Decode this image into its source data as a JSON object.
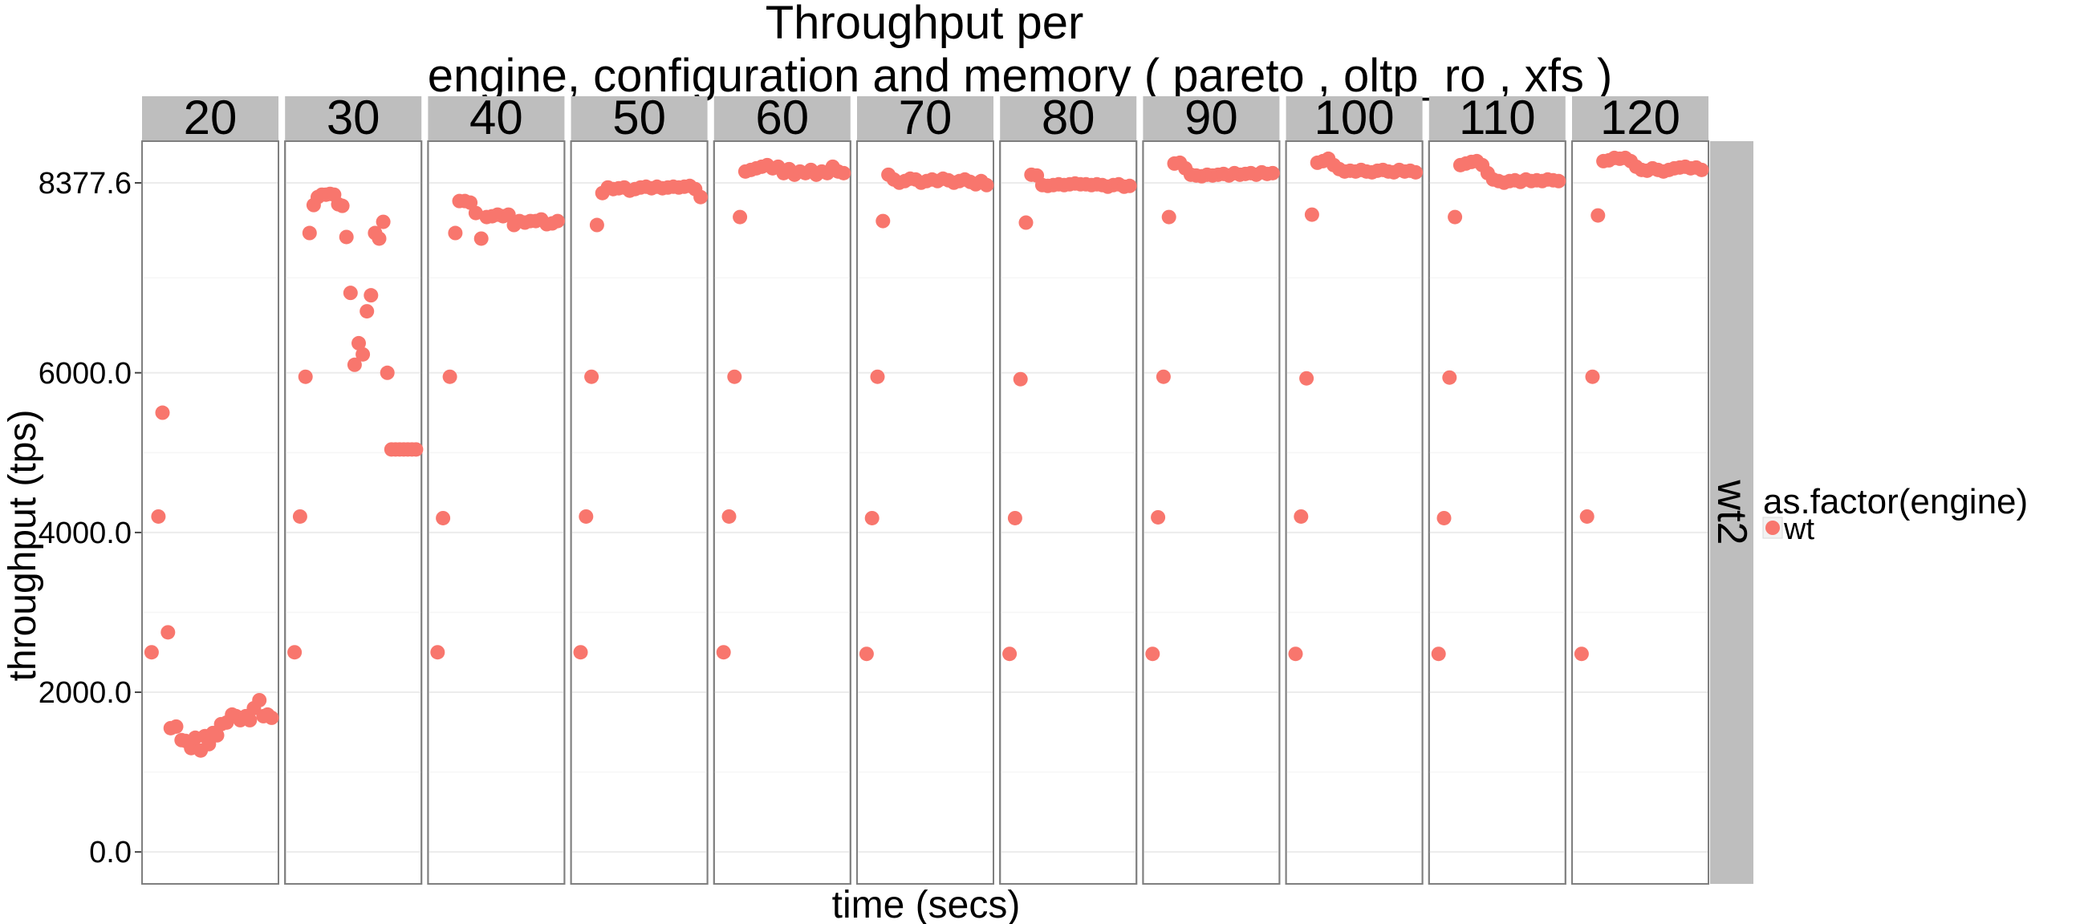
{
  "chart_data": {
    "type": "scatter",
    "title": "Throughput per\nengine, configuration and memory ( pareto , oltp_ro , xfs )",
    "xlabel": "time (secs)",
    "ylabel": "throughput (tps)",
    "ylim": [
      -400,
      8900
    ],
    "yticks": [
      0.0,
      2000.0,
      4000.0,
      6000.0,
      8377.6
    ],
    "ytick_labels": [
      "0.0",
      "2000.0",
      "4000.0",
      "6000.0",
      "8377.6"
    ],
    "xlim": [
      0,
      1
    ],
    "grid": true,
    "facet_columns": [
      "20",
      "30",
      "40",
      "50",
      "60",
      "70",
      "80",
      "90",
      "100",
      "110",
      "120"
    ],
    "facet_row": "wt2",
    "legend": {
      "title": "as.factor(engine)",
      "position": "right",
      "entries": [
        {
          "label": "wt",
          "color": "#f8766d"
        }
      ]
    },
    "series": [
      {
        "name": "wt",
        "facets": [
          {
            "facet": "20",
            "x": [
              0.07,
              0.12,
              0.15,
              0.19,
              0.21,
              0.25,
              0.29,
              0.32,
              0.36,
              0.39,
              0.43,
              0.46,
              0.49,
              0.52,
              0.55,
              0.58,
              0.62,
              0.66,
              0.69,
              0.72,
              0.76,
              0.79,
              0.82,
              0.86,
              0.89,
              0.92,
              0.95
            ],
            "y": [
              2500,
              4200,
              5500,
              2750,
              1550,
              1570,
              1400,
              1390,
              1300,
              1430,
              1270,
              1450,
              1350,
              1490,
              1460,
              1600,
              1620,
              1720,
              1700,
              1650,
              1700,
              1650,
              1800,
              1900,
              1700,
              1720,
              1680
            ]
          },
          {
            "facet": "30",
            "x": [
              0.07,
              0.11,
              0.15,
              0.18,
              0.21,
              0.24,
              0.27,
              0.3,
              0.33,
              0.36,
              0.39,
              0.42,
              0.45,
              0.48,
              0.51,
              0.54,
              0.57,
              0.6,
              0.63,
              0.66,
              0.69,
              0.72,
              0.75,
              0.78,
              0.81,
              0.84,
              0.87,
              0.9,
              0.93,
              0.96
            ],
            "y": [
              2500,
              4200,
              5950,
              7750,
              8100,
              8200,
              8230,
              8230,
              8240,
              8230,
              8110,
              8090,
              7700,
              7000,
              6100,
              6370,
              6230,
              6770,
              6970,
              7750,
              7680,
              7890,
              6000,
              5040,
              5040,
              5040,
              5040,
              5040,
              5040,
              5040
            ]
          },
          {
            "facet": "40",
            "x": [
              0.07,
              0.11,
              0.16,
              0.2,
              0.23,
              0.27,
              0.31,
              0.35,
              0.39,
              0.43,
              0.47,
              0.51,
              0.55,
              0.59,
              0.63,
              0.67,
              0.71,
              0.75,
              0.79,
              0.83,
              0.87,
              0.91,
              0.95
            ],
            "y": [
              2500,
              4180,
              5950,
              7750,
              8150,
              8150,
              8130,
              8000,
              7680,
              7950,
              7960,
              7980,
              7960,
              7980,
              7850,
              7900,
              7880,
              7900,
              7900,
              7920,
              7860,
              7870,
              7900
            ]
          },
          {
            "facet": "50",
            "x": [
              0.07,
              0.11,
              0.15,
              0.19,
              0.23,
              0.27,
              0.31,
              0.35,
              0.39,
              0.43,
              0.47,
              0.51,
              0.55,
              0.59,
              0.63,
              0.67,
              0.71,
              0.75,
              0.79,
              0.83,
              0.87,
              0.91,
              0.95
            ],
            "y": [
              2500,
              4200,
              5950,
              7850,
              8250,
              8320,
              8300,
              8310,
              8320,
              8280,
              8300,
              8320,
              8330,
              8310,
              8330,
              8310,
              8320,
              8330,
              8320,
              8330,
              8340,
              8300,
              8200
            ]
          },
          {
            "facet": "60",
            "x": [
              0.07,
              0.11,
              0.15,
              0.19,
              0.23,
              0.27,
              0.31,
              0.35,
              0.39,
              0.43,
              0.47,
              0.51,
              0.55,
              0.59,
              0.63,
              0.67,
              0.71,
              0.75,
              0.79,
              0.83,
              0.87,
              0.91,
              0.95
            ],
            "y": [
              2500,
              4200,
              5950,
              7950,
              8520,
              8540,
              8560,
              8580,
              8600,
              8560,
              8580,
              8500,
              8550,
              8480,
              8520,
              8500,
              8540,
              8480,
              8520,
              8500,
              8580,
              8520,
              8500
            ]
          },
          {
            "facet": "70",
            "x": [
              0.07,
              0.11,
              0.15,
              0.19,
              0.23,
              0.27,
              0.31,
              0.35,
              0.39,
              0.43,
              0.47,
              0.51,
              0.55,
              0.59,
              0.63,
              0.67,
              0.71,
              0.75,
              0.79,
              0.83,
              0.87,
              0.91,
              0.95
            ],
            "y": [
              2480,
              4180,
              5950,
              7900,
              8480,
              8420,
              8380,
              8400,
              8430,
              8420,
              8380,
              8400,
              8420,
              8400,
              8430,
              8410,
              8380,
              8400,
              8420,
              8390,
              8360,
              8400,
              8350
            ]
          },
          {
            "facet": "80",
            "x": [
              0.07,
              0.11,
              0.15,
              0.19,
              0.23,
              0.27,
              0.31,
              0.35,
              0.39,
              0.43,
              0.47,
              0.51,
              0.55,
              0.59,
              0.63,
              0.67,
              0.71,
              0.75,
              0.79,
              0.83,
              0.87,
              0.91,
              0.95
            ],
            "y": [
              2480,
              4180,
              5920,
              7880,
              8480,
              8470,
              8350,
              8340,
              8350,
              8360,
              8350,
              8360,
              8370,
              8360,
              8360,
              8350,
              8360,
              8350,
              8330,
              8350,
              8360,
              8330,
              8340
            ]
          },
          {
            "facet": "90",
            "x": [
              0.07,
              0.11,
              0.15,
              0.19,
              0.23,
              0.27,
              0.31,
              0.35,
              0.39,
              0.43,
              0.47,
              0.51,
              0.55,
              0.59,
              0.63,
              0.67,
              0.71,
              0.75,
              0.79,
              0.83,
              0.87,
              0.91,
              0.95
            ],
            "y": [
              2480,
              4190,
              5950,
              7950,
              8620,
              8630,
              8560,
              8480,
              8470,
              8460,
              8480,
              8470,
              8480,
              8490,
              8470,
              8500,
              8480,
              8490,
              8500,
              8480,
              8510,
              8490,
              8500
            ]
          },
          {
            "facet": "100",
            "x": [
              0.07,
              0.11,
              0.15,
              0.19,
              0.23,
              0.27,
              0.31,
              0.35,
              0.39,
              0.43,
              0.47,
              0.51,
              0.55,
              0.59,
              0.63,
              0.67,
              0.71,
              0.75,
              0.79,
              0.83,
              0.87,
              0.91,
              0.95
            ],
            "y": [
              2480,
              4200,
              5930,
              7980,
              8630,
              8650,
              8680,
              8600,
              8550,
              8520,
              8530,
              8520,
              8540,
              8520,
              8510,
              8530,
              8540,
              8520,
              8510,
              8540,
              8520,
              8530,
              8510
            ]
          },
          {
            "facet": "110",
            "x": [
              0.07,
              0.11,
              0.15,
              0.19,
              0.23,
              0.27,
              0.31,
              0.35,
              0.39,
              0.43,
              0.47,
              0.51,
              0.55,
              0.59,
              0.63,
              0.67,
              0.71,
              0.75,
              0.79,
              0.83,
              0.87,
              0.91,
              0.95
            ],
            "y": [
              2480,
              4180,
              5940,
              7950,
              8600,
              8620,
              8640,
              8650,
              8600,
              8500,
              8420,
              8400,
              8380,
              8400,
              8410,
              8390,
              8420,
              8400,
              8410,
              8400,
              8420,
              8410,
              8400
            ]
          },
          {
            "facet": "120",
            "x": [
              0.07,
              0.11,
              0.15,
              0.19,
              0.23,
              0.27,
              0.31,
              0.35,
              0.39,
              0.43,
              0.47,
              0.51,
              0.55,
              0.59,
              0.63,
              0.67,
              0.71,
              0.75,
              0.79,
              0.83,
              0.87,
              0.91,
              0.95
            ],
            "y": [
              2480,
              4200,
              5950,
              7970,
              8650,
              8660,
              8690,
              8680,
              8690,
              8650,
              8580,
              8540,
              8530,
              8560,
              8540,
              8520,
              8540,
              8560,
              8570,
              8580,
              8560,
              8570,
              8540
            ]
          }
        ]
      }
    ]
  }
}
